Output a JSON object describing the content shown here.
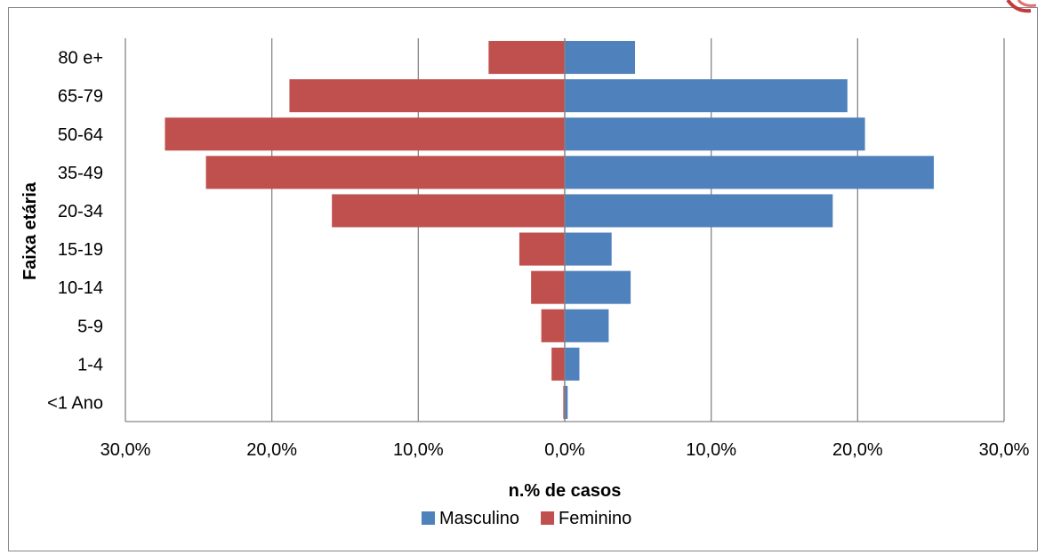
{
  "chart_data": {
    "type": "bar",
    "orientation": "horizontal",
    "layout": "population-pyramid",
    "categories": [
      "<1 Ano",
      "1-4",
      "5-9",
      "10-14",
      "15-19",
      "20-34",
      "35-49",
      "50-64",
      "65-79",
      "80 e+"
    ],
    "series": [
      {
        "name": "Masculino",
        "side": "right",
        "color": "#4F81BD",
        "values": [
          0.2,
          1.0,
          3.0,
          4.5,
          3.2,
          18.3,
          25.2,
          20.5,
          19.3,
          4.8
        ]
      },
      {
        "name": "Feminino",
        "side": "left",
        "color": "#C0504D",
        "values": [
          0.1,
          0.9,
          1.6,
          2.3,
          3.1,
          15.9,
          24.5,
          27.3,
          18.8,
          5.2
        ]
      }
    ],
    "xlabel": "n.% de casos",
    "ylabel": "Faixa etária",
    "xlim": [
      -30,
      30
    ],
    "xticks": [
      -30,
      -20,
      -10,
      0,
      10,
      20,
      30
    ],
    "xtick_labels": [
      "30,0%",
      "20,0%",
      "10,0%",
      "0,0%",
      "10,0%",
      "20,0%",
      "30,0%"
    ],
    "grid": "vertical",
    "gridline_color": "#868686",
    "legend_position": "bottom"
  }
}
